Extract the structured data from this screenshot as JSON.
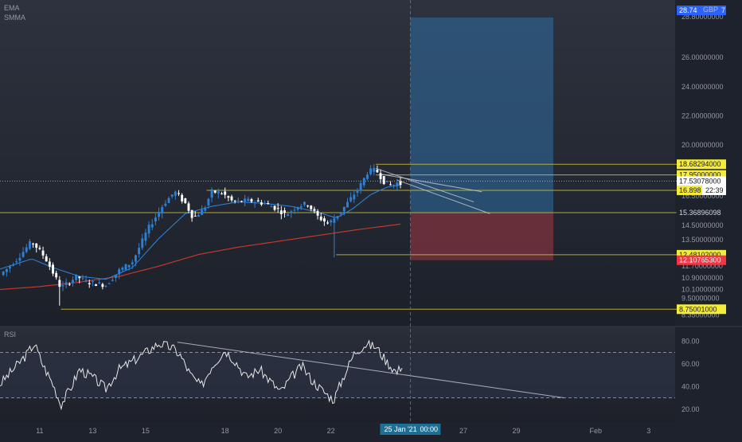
{
  "indicators": {
    "ema": "EMA",
    "smma": "SMMA",
    "rsi": "RSI"
  },
  "timer": "22:39",
  "cursor_date": "25 Jan '21",
  "cursor_time": "00:00",
  "top_badge": {
    "price": "28.74",
    "currency": "GBP",
    "suffix": "7"
  },
  "colors": {
    "up": "#2f7fd3",
    "down": "#ffffff",
    "ema": "#2e86de",
    "smma": "#c0392b",
    "level_line": "#c9c13a",
    "badge_yellow": "#f5eb3b",
    "badge_red": "#f23645",
    "badge_blue": "#2962ff",
    "profit_zone": "#2f6ea3",
    "loss_zone": "#8c3440",
    "rsi": "#e8e8e8"
  },
  "chart_data": {
    "type": "candlestick",
    "price_axis": {
      "range": [
        8.0,
        29.5
      ],
      "ticks": [
        "28.80000000",
        "26.00000000",
        "24.00000000",
        "22.00000000",
        "20.00000000",
        "16.50000000",
        "14.50000000",
        "13.50000000",
        "11.70000000",
        "10.90000000",
        "10.10000000",
        "9.50000000",
        "8.35000000"
      ]
    },
    "price_ticks": [
      28.8,
      26.0,
      24.0,
      22.0,
      20.0,
      16.5,
      14.5,
      13.5,
      11.7,
      10.9,
      10.1,
      9.5,
      8.35
    ],
    "x_axis": {
      "labels": [
        "11",
        "13",
        "15",
        "18",
        "20",
        "22",
        "27",
        "29",
        "Feb",
        "3"
      ],
      "positions": [
        10.5,
        12.5,
        14.5,
        17.5,
        19.5,
        21.5,
        26.5,
        28.5,
        31.5,
        33.5
      ],
      "range": [
        9.0,
        34.5
      ]
    },
    "cursor_x": 24.5,
    "candles_series": {
      "start": 9.0,
      "step": 0.125,
      "waypoints": [
        [
          9.0,
          11.1
        ],
        [
          9.6,
          12.1
        ],
        [
          10.2,
          13.4
        ],
        [
          10.7,
          12.3
        ],
        [
          11.3,
          10.2
        ],
        [
          11.9,
          11.0
        ],
        [
          12.3,
          10.6
        ],
        [
          13.0,
          10.4
        ],
        [
          13.5,
          11.4
        ],
        [
          14.0,
          12.0
        ],
        [
          14.6,
          14.3
        ],
        [
          15.2,
          16.0
        ],
        [
          15.6,
          16.8
        ],
        [
          16.0,
          16.0
        ],
        [
          16.3,
          15.0
        ],
        [
          16.7,
          15.6
        ],
        [
          17.0,
          16.8
        ],
        [
          17.4,
          16.7
        ],
        [
          17.8,
          16.1
        ],
        [
          18.4,
          16.2
        ],
        [
          19.0,
          16.0
        ],
        [
          19.5,
          15.6
        ],
        [
          19.8,
          15.2
        ],
        [
          20.2,
          15.8
        ],
        [
          20.6,
          16.0
        ],
        [
          21.0,
          15.1
        ],
        [
          21.4,
          14.6
        ],
        [
          21.8,
          15.3
        ],
        [
          22.2,
          16.2
        ],
        [
          22.6,
          17.2
        ],
        [
          22.9,
          18.2
        ],
        [
          23.2,
          18.3
        ],
        [
          23.5,
          17.5
        ],
        [
          23.8,
          17.2
        ],
        [
          24.0,
          17.4
        ],
        [
          24.2,
          17.3
        ]
      ],
      "spikes": [
        [
          11.3,
          9.0
        ],
        [
          21.6,
          12.3
        ],
        [
          23.1,
          18.7
        ]
      ]
    },
    "ema_series": {
      "start": 9.0,
      "step": 0.125,
      "waypoints": [
        [
          9.0,
          11.5
        ],
        [
          10.2,
          12.2
        ],
        [
          11.0,
          11.6
        ],
        [
          12.0,
          11.0
        ],
        [
          13.0,
          10.8
        ],
        [
          14.0,
          11.6
        ],
        [
          15.0,
          13.6
        ],
        [
          16.0,
          15.3
        ],
        [
          17.0,
          15.8
        ],
        [
          18.0,
          16.1
        ],
        [
          19.0,
          16.0
        ],
        [
          20.0,
          15.8
        ],
        [
          21.0,
          15.4
        ],
        [
          21.7,
          15.0
        ],
        [
          22.3,
          15.6
        ],
        [
          23.0,
          16.6
        ],
        [
          23.6,
          17.1
        ],
        [
          24.2,
          17.3
        ]
      ]
    },
    "smma_series": {
      "start": 9.0,
      "step": 0.125,
      "waypoints": [
        [
          9.0,
          10.1
        ],
        [
          10.5,
          10.3
        ],
        [
          12.0,
          10.6
        ],
        [
          13.5,
          11.0
        ],
        [
          15.0,
          11.7
        ],
        [
          16.5,
          12.5
        ],
        [
          18.0,
          13.0
        ],
        [
          19.5,
          13.4
        ],
        [
          21.0,
          13.8
        ],
        [
          22.5,
          14.2
        ],
        [
          24.2,
          14.6
        ]
      ]
    },
    "levels": [
      {
        "price": 18.68294,
        "label": "18.68294000",
        "x0": 23.2,
        "x1": 34.0,
        "badge": "yellow"
      },
      {
        "price": 17.95,
        "label": "17.95000000",
        "x0": 23.2,
        "x1": 34.0,
        "badge": "yellow"
      },
      {
        "price": 17.53078,
        "label": "17.53078000",
        "x0": 9.0,
        "x1": 34.0,
        "badge": "white",
        "dotted": true
      },
      {
        "price": 16.898,
        "label": "16.898",
        "x0": 16.8,
        "x1": 34.0,
        "badge": "yellow",
        "timer": true
      },
      {
        "price": 15.36896098,
        "label": "15.36896098",
        "x0": 9.0,
        "x1": 34.0,
        "badge": "none"
      },
      {
        "price": 12.48102,
        "label": "12.48102000",
        "x0": 21.7,
        "x1": 34.0,
        "badge": "yellow"
      },
      {
        "price": 12.107653,
        "label": "12.10765300",
        "x0": 24.5,
        "x1": 34.0,
        "badge": "red",
        "noline": true
      },
      {
        "price": 8.75001,
        "label": "8.75001000",
        "x0": 11.3,
        "x1": 34.0,
        "badge": "yellow"
      }
    ],
    "position": {
      "x0": 24.5,
      "x1": 29.9,
      "entry": 15.36896098,
      "target": 28.74,
      "stop": 12.107653
    },
    "trendlines": [
      {
        "x0": 23.2,
        "y0": 18.4,
        "x1": 26.9,
        "y1": 16.1
      },
      {
        "x0": 23.4,
        "y0": 18.0,
        "x1": 27.2,
        "y1": 16.8
      },
      {
        "x0": 24.0,
        "y0": 17.6,
        "x1": 27.5,
        "y1": 15.3
      }
    ],
    "rsi": {
      "range": [
        10,
        90
      ],
      "ticks": [
        "80.00",
        "60.00",
        "40.00",
        "20.00"
      ],
      "tick_values": [
        80,
        60,
        40,
        20
      ],
      "upper": 70,
      "lower": 30,
      "waypoints": [
        [
          9.0,
          42
        ],
        [
          9.5,
          55
        ],
        [
          10.0,
          68
        ],
        [
          10.3,
          78
        ],
        [
          10.6,
          60
        ],
        [
          11.0,
          42
        ],
        [
          11.3,
          24
        ],
        [
          11.7,
          40
        ],
        [
          12.0,
          55
        ],
        [
          12.5,
          48
        ],
        [
          13.0,
          38
        ],
        [
          13.5,
          55
        ],
        [
          14.0,
          62
        ],
        [
          14.5,
          70
        ],
        [
          15.0,
          78
        ],
        [
          15.5,
          74
        ],
        [
          15.8,
          68
        ],
        [
          16.2,
          50
        ],
        [
          16.6,
          40
        ],
        [
          17.0,
          58
        ],
        [
          17.5,
          72
        ],
        [
          17.9,
          62
        ],
        [
          18.3,
          48
        ],
        [
          18.8,
          55
        ],
        [
          19.2,
          45
        ],
        [
          19.6,
          35
        ],
        [
          20.0,
          48
        ],
        [
          20.4,
          58
        ],
        [
          20.8,
          45
        ],
        [
          21.2,
          36
        ],
        [
          21.6,
          28
        ],
        [
          22.0,
          50
        ],
        [
          22.4,
          70
        ],
        [
          22.8,
          77
        ],
        [
          23.2,
          75
        ],
        [
          23.6,
          62
        ],
        [
          24.0,
          52
        ],
        [
          24.2,
          60
        ]
      ],
      "trendline": {
        "x0": 15.7,
        "y0": 79,
        "x1": 30.3,
        "y1": 30
      }
    }
  }
}
